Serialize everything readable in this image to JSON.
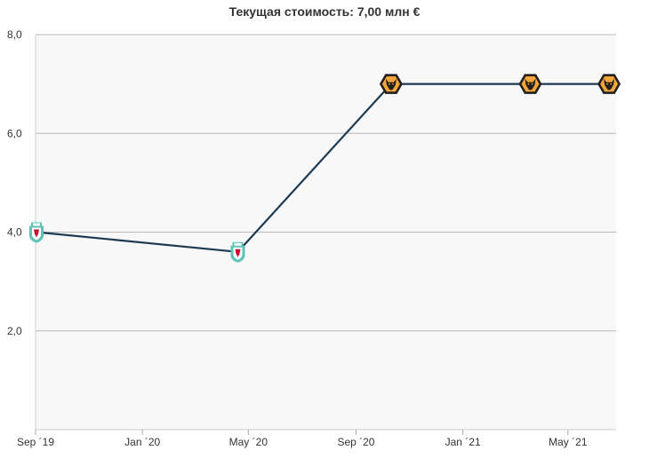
{
  "chart_data": {
    "type": "line",
    "title": "Текущая стоимость: 7,00 млн €",
    "xlabel": "",
    "ylabel": "",
    "ylim": [
      0,
      8
    ],
    "y_ticks": [
      {
        "value": 2,
        "label": "2,0"
      },
      {
        "value": 4,
        "label": "4,0"
      },
      {
        "value": 6,
        "label": "6,0"
      },
      {
        "value": 8,
        "label": "8,0"
      }
    ],
    "x_range": [
      "2019-09-01",
      "2021-06-25"
    ],
    "x_ticks": [
      {
        "date": "2019-09-01",
        "label": "Sep ´19"
      },
      {
        "date": "2020-01-01",
        "label": "Jan ´20"
      },
      {
        "date": "2020-05-01",
        "label": "May ´20"
      },
      {
        "date": "2020-09-01",
        "label": "Sep ´20"
      },
      {
        "date": "2021-01-01",
        "label": "Jan ´21"
      },
      {
        "date": "2021-05-01",
        "label": "May ´21"
      }
    ],
    "grid": true,
    "points": [
      {
        "date": "2019-09-02",
        "value": 4.0,
        "club": "liverpool-crest-icon"
      },
      {
        "date": "2020-04-19",
        "value": 3.6,
        "club": "liverpool-crest-icon"
      },
      {
        "date": "2020-10-11",
        "value": 7.0,
        "club": "wolves-crest-icon"
      },
      {
        "date": "2021-03-19",
        "value": 7.0,
        "club": "wolves-crest-icon"
      },
      {
        "date": "2021-06-17",
        "value": 7.0,
        "club": "wolves-crest-icon"
      }
    ],
    "colors": {
      "line": "#1d3a54",
      "plot_bg": "#f8f8f8",
      "gridline": "#b8b8b8",
      "liverpool_red": "#c8102e",
      "liverpool_teal": "#5cc3b6",
      "wolves_gold": "#f4a638"
    }
  }
}
